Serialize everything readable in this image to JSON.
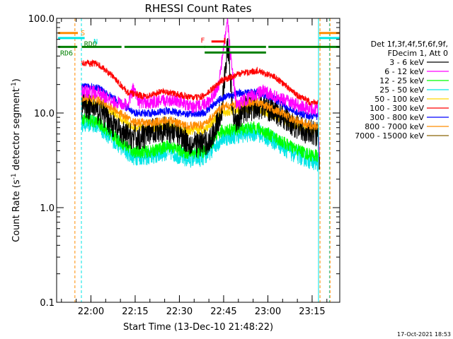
{
  "chart_data": {
    "type": "line",
    "title": "RHESSI Count Rates",
    "xlabel": "Start Time (13-Dec-10 21:48:22)",
    "ylabel_main": "Count Rate (s",
    "ylabel_sup1": "-1",
    "ylabel_mid": " detector segment",
    "ylabel_sup2": "-1",
    "ylabel_end": ")",
    "y_scale": "log",
    "ylim": [
      0.1,
      100
    ],
    "xlim_minutes_after_start": [
      0,
      96
    ],
    "y_ticks": [
      {
        "value": 100,
        "label": "100.0"
      },
      {
        "value": 10,
        "label": "10.0"
      },
      {
        "value": 1,
        "label": "1.0"
      },
      {
        "value": 0.1,
        "label": "0.1"
      }
    ],
    "x_ticks": [
      {
        "minute": 11.63,
        "label": "22:00"
      },
      {
        "minute": 26.63,
        "label": "22:15"
      },
      {
        "minute": 41.63,
        "label": "22:30"
      },
      {
        "minute": 56.63,
        "label": "22:45"
      },
      {
        "minute": 71.63,
        "label": "23:00"
      },
      {
        "minute": 86.63,
        "label": "23:15"
      }
    ],
    "legend_header": [
      "Det 1f,3f,4f,5f,6f,9f,",
      "FDecim 1, Att 0"
    ],
    "legend_placement": "right",
    "series": [
      {
        "name": "3 - 6 keV",
        "color": "#000000",
        "points": [
          [
            8.5,
            12
          ],
          [
            12,
            11.5
          ],
          [
            16,
            9.5
          ],
          [
            22,
            6
          ],
          [
            28,
            5.4
          ],
          [
            34,
            6.8
          ],
          [
            40,
            6.5
          ],
          [
            46,
            4.6
          ],
          [
            52,
            5
          ],
          [
            56,
            10.5
          ],
          [
            58,
            55
          ],
          [
            60,
            8
          ],
          [
            64,
            11
          ],
          [
            70,
            12
          ],
          [
            76,
            9.5
          ],
          [
            82,
            7
          ],
          [
            86,
            6.2
          ],
          [
            88.6,
            6
          ],
          [
            89.2,
            2.5
          ]
        ],
        "noise": 0.14
      },
      {
        "name": "6 - 12 keV",
        "color": "#ff00ff",
        "points": [
          [
            8.5,
            17
          ],
          [
            14,
            16.5
          ],
          [
            20,
            13
          ],
          [
            24,
            12
          ],
          [
            26,
            18
          ],
          [
            28,
            13
          ],
          [
            34,
            13
          ],
          [
            40,
            14
          ],
          [
            46,
            11.5
          ],
          [
            52,
            13
          ],
          [
            55,
            20
          ],
          [
            57,
            60
          ],
          [
            58,
            90
          ],
          [
            59,
            40
          ],
          [
            61,
            12
          ],
          [
            64,
            14
          ],
          [
            70,
            17
          ],
          [
            76,
            14
          ],
          [
            82,
            12
          ],
          [
            86,
            11
          ],
          [
            88.6,
            11
          ],
          [
            89.2,
            3
          ]
        ],
        "noise": 0.07
      },
      {
        "name": "12 - 25 keV",
        "color": "#00ff00",
        "points": [
          [
            8.5,
            8.6
          ],
          [
            14,
            8
          ],
          [
            20,
            5.5
          ],
          [
            26,
            3.9
          ],
          [
            32,
            3.9
          ],
          [
            38,
            4.5
          ],
          [
            44,
            3.8
          ],
          [
            50,
            3.9
          ],
          [
            56,
            6.5
          ],
          [
            62,
            6.8
          ],
          [
            68,
            7
          ],
          [
            74,
            5.5
          ],
          [
            80,
            4.3
          ],
          [
            86,
            3.6
          ],
          [
            88.6,
            3.5
          ]
        ],
        "noise": 0.07
      },
      {
        "name": "25 - 50 keV",
        "color": "#00e6e6",
        "points": [
          [
            8.5,
            8
          ],
          [
            14,
            7.5
          ],
          [
            20,
            5
          ],
          [
            26,
            3.5
          ],
          [
            32,
            3.5
          ],
          [
            38,
            4
          ],
          [
            44,
            3.3
          ],
          [
            50,
            3.4
          ],
          [
            56,
            5.5
          ],
          [
            62,
            6
          ],
          [
            68,
            6.3
          ],
          [
            74,
            5
          ],
          [
            80,
            3.8
          ],
          [
            86,
            3.2
          ],
          [
            88.6,
            3
          ]
        ],
        "noise": 0.1
      },
      {
        "name": "50 - 100 keV",
        "color": "#ffd700",
        "points": [
          [
            8.5,
            13
          ],
          [
            14,
            12.5
          ],
          [
            20,
            9.6
          ],
          [
            26,
            7
          ],
          [
            32,
            6.8
          ],
          [
            38,
            7.6
          ],
          [
            44,
            6.4
          ],
          [
            50,
            6.6
          ],
          [
            56,
            10
          ],
          [
            62,
            10.8
          ],
          [
            68,
            11.2
          ],
          [
            74,
            9.2
          ],
          [
            80,
            7.6
          ],
          [
            86,
            6.6
          ],
          [
            88.6,
            6.5
          ]
        ],
        "noise": 0.05
      },
      {
        "name": "100 - 300 keV",
        "color": "#ff0000",
        "points": [
          [
            8.5,
            34
          ],
          [
            14,
            33
          ],
          [
            20,
            23
          ],
          [
            24,
            16.5
          ],
          [
            30,
            15
          ],
          [
            36,
            17
          ],
          [
            42,
            15.5
          ],
          [
            46,
            14.5
          ],
          [
            50,
            15
          ],
          [
            56,
            22
          ],
          [
            62,
            26
          ],
          [
            68,
            28
          ],
          [
            74,
            24
          ],
          [
            78,
            19
          ],
          [
            82,
            15
          ],
          [
            86,
            13
          ],
          [
            88.6,
            13.2
          ]
        ],
        "noise": 0.035
      },
      {
        "name": "300 - 800 keV",
        "color": "#0000ff",
        "points": [
          [
            8.5,
            19
          ],
          [
            14,
            18.5
          ],
          [
            20,
            14
          ],
          [
            26,
            10
          ],
          [
            32,
            10
          ],
          [
            38,
            10.6
          ],
          [
            44,
            9.6
          ],
          [
            50,
            10
          ],
          [
            56,
            14.5
          ],
          [
            62,
            16.2
          ],
          [
            68,
            16.6
          ],
          [
            74,
            14
          ],
          [
            80,
            10.5
          ],
          [
            86,
            9.3
          ],
          [
            88.6,
            9.2
          ]
        ],
        "noise": 0.04
      },
      {
        "name": "800 - 7000 keV",
        "color": "#ff8c00",
        "points": [
          [
            8.5,
            14.5
          ],
          [
            14,
            14
          ],
          [
            20,
            10.8
          ],
          [
            26,
            8
          ],
          [
            32,
            7.8
          ],
          [
            38,
            8.5
          ],
          [
            44,
            7.3
          ],
          [
            50,
            7.5
          ],
          [
            56,
            11.5
          ],
          [
            62,
            12.5
          ],
          [
            68,
            13
          ],
          [
            74,
            10.8
          ],
          [
            80,
            8.6
          ],
          [
            86,
            7.4
          ],
          [
            88.6,
            7.3
          ]
        ],
        "noise": 0.045
      },
      {
        "name": "7000 - 15000 keV",
        "color": "#8b6508",
        "points": [],
        "noise": 0
      }
    ],
    "attenuator_bars": [
      {
        "label": "S",
        "color": "#ff8c00",
        "y_value": 70
      },
      {
        "label": "N",
        "color": "#00e6e6",
        "y_value": 62
      },
      {
        "label": "F",
        "color": "#ff0000",
        "y_value": 57
      },
      {
        "label": "RDO",
        "color": "#008000",
        "y_value": 50
      },
      {
        "label": "RD6",
        "color": "#008000",
        "y_value": 50
      }
    ]
  },
  "timestamp": "17-Oct-2021 18:53"
}
